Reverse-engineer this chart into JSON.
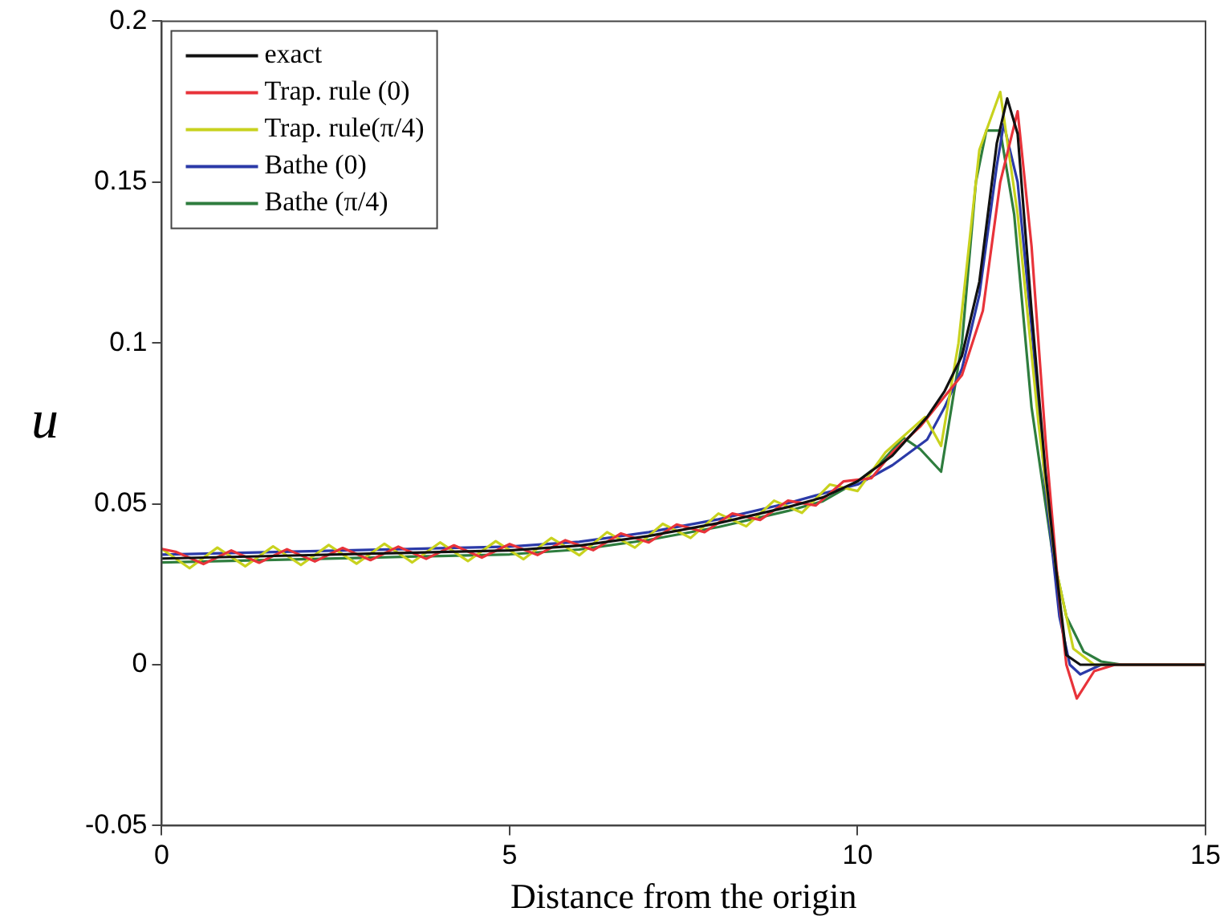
{
  "chart_data": {
    "type": "line",
    "xlabel": "Distance from the origin",
    "ylabel": "u",
    "xlim": [
      0,
      15
    ],
    "ylim": [
      -0.05,
      0.2
    ],
    "xticks": [
      0,
      5,
      10,
      15
    ],
    "yticks": [
      -0.05,
      0,
      0.05,
      0.1,
      0.15,
      0.2
    ],
    "grid": false,
    "legend": "top left",
    "marker": "none",
    "line_style": "solid",
    "series": [
      {
        "name": "exact",
        "color": "#111111",
        "x": [
          0,
          1,
          2,
          3,
          4,
          5,
          6,
          7,
          8,
          9,
          9.5,
          10,
          10.5,
          11,
          11.25,
          11.5,
          11.75,
          12,
          12.15,
          12.3,
          12.5,
          12.7,
          12.85,
          13,
          13.2,
          15
        ],
        "values": [
          0.033,
          0.0335,
          0.034,
          0.0345,
          0.035,
          0.0355,
          0.037,
          0.04,
          0.044,
          0.049,
          0.052,
          0.057,
          0.065,
          0.077,
          0.085,
          0.096,
          0.119,
          0.162,
          0.176,
          0.165,
          0.11,
          0.06,
          0.03,
          0.003,
          0,
          0
        ]
      },
      {
        "name": "Trap. rule (0)",
        "color": "#e8333a",
        "x": [
          0,
          0.2,
          0.6,
          1,
          1.4,
          1.8,
          2.2,
          2.6,
          3,
          3.4,
          3.8,
          4.2,
          4.6,
          5,
          5.4,
          5.8,
          6.2,
          6.6,
          7,
          7.4,
          7.8,
          8.2,
          8.6,
          9,
          9.4,
          9.8,
          10.2,
          10.5,
          10.9,
          11.2,
          11.5,
          11.8,
          12.05,
          12.3,
          12.5,
          12.7,
          12.9,
          13,
          13.15,
          13.4,
          13.7,
          15
        ],
        "values": [
          0.036,
          0.0351,
          0.0313,
          0.0355,
          0.0317,
          0.0359,
          0.0321,
          0.0363,
          0.0325,
          0.0367,
          0.0329,
          0.0371,
          0.0333,
          0.0375,
          0.0341,
          0.0387,
          0.0356,
          0.0408,
          0.038,
          0.0436,
          0.0412,
          0.047,
          0.045,
          0.051,
          0.0495,
          0.057,
          0.058,
          0.066,
          0.074,
          0.082,
          0.09,
          0.11,
          0.15,
          0.172,
          0.13,
          0.07,
          0.02,
          0,
          -0.0105,
          -0.002,
          0,
          0
        ]
      },
      {
        "name": "Trap. rule(π/4)",
        "color": "#c8d21e",
        "x": [
          0,
          0.4,
          0.8,
          1.2,
          1.6,
          2,
          2.4,
          2.8,
          3.2,
          3.6,
          4,
          4.4,
          4.8,
          5.2,
          5.6,
          6,
          6.4,
          6.8,
          7.2,
          7.6,
          8,
          8.4,
          8.8,
          9.2,
          9.6,
          10,
          10.4,
          10.97,
          11.2,
          11.45,
          11.75,
          12.05,
          12.3,
          12.6,
          12.85,
          13.1,
          13.4,
          15
        ],
        "values": [
          0.036,
          0.03,
          0.0364,
          0.0306,
          0.0368,
          0.031,
          0.0372,
          0.0314,
          0.0376,
          0.0318,
          0.038,
          0.0322,
          0.0384,
          0.0328,
          0.0394,
          0.034,
          0.0412,
          0.0364,
          0.0438,
          0.0394,
          0.047,
          0.043,
          0.051,
          0.0472,
          0.056,
          0.054,
          0.066,
          0.077,
          0.068,
          0.1,
          0.16,
          0.178,
          0.14,
          0.075,
          0.03,
          0.005,
          0,
          0
        ]
      },
      {
        "name": "Bathe (0)",
        "color": "#2b3aa8",
        "x": [
          0,
          1,
          2,
          3,
          4,
          5,
          6,
          7,
          8,
          9,
          9.5,
          10,
          10.5,
          11,
          11.25,
          11.5,
          11.75,
          12,
          12.1,
          12.3,
          12.5,
          12.7,
          12.9,
          13.05,
          13.2,
          13.5,
          15
        ],
        "values": [
          0.0342,
          0.0347,
          0.0352,
          0.0357,
          0.0362,
          0.0367,
          0.0382,
          0.0412,
          0.0452,
          0.0502,
          0.0532,
          0.056,
          0.062,
          0.07,
          0.08,
          0.092,
          0.115,
          0.155,
          0.168,
          0.15,
          0.105,
          0.055,
          0.015,
          0,
          -0.003,
          0,
          0
        ]
      },
      {
        "name": "Bathe (π/4)",
        "color": "#2e7d3e",
        "x": [
          0,
          1,
          2,
          3,
          4,
          5,
          6,
          7,
          8,
          9,
          9.5,
          10,
          10.3,
          10.66,
          10.9,
          11.2,
          11.5,
          11.7,
          11.85,
          12.05,
          12.25,
          12.5,
          12.8,
          13,
          13.25,
          13.5,
          13.8,
          15
        ],
        "values": [
          0.0318,
          0.0323,
          0.0328,
          0.0333,
          0.0338,
          0.0343,
          0.0358,
          0.0388,
          0.0428,
          0.0478,
          0.0508,
          0.057,
          0.062,
          0.0705,
          0.067,
          0.06,
          0.1,
          0.15,
          0.166,
          0.166,
          0.14,
          0.08,
          0.035,
          0.015,
          0.004,
          0.001,
          0,
          0
        ]
      }
    ]
  }
}
